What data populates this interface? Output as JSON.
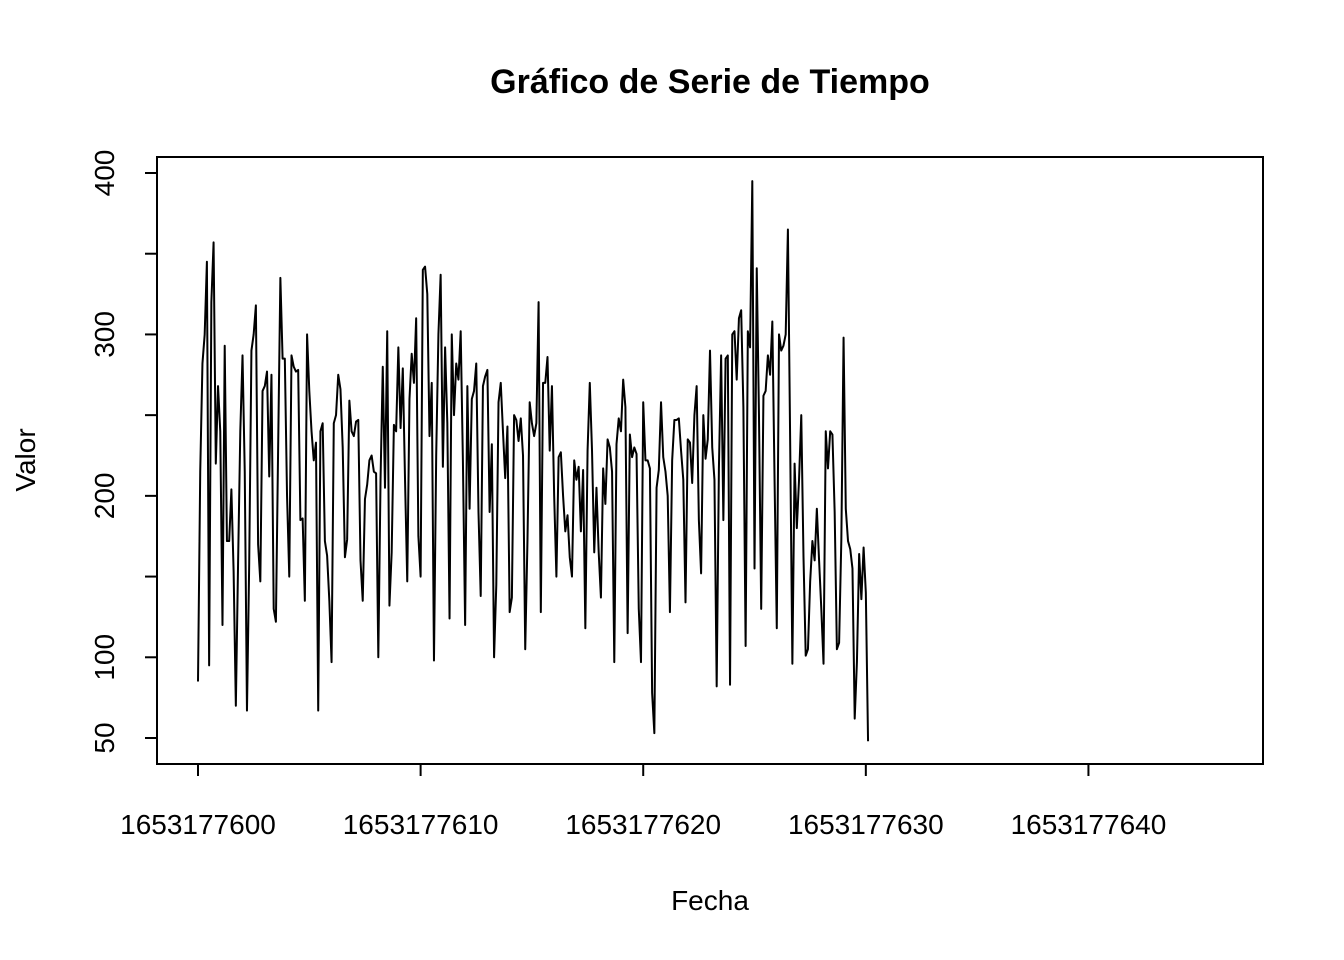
{
  "chart_data": {
    "type": "line",
    "title": "Gráfico de Serie de Tiempo",
    "xlabel": "Fecha",
    "ylabel": "Valor",
    "xlim": [
      1653177600,
      1653177646
    ],
    "ylim": [
      50,
      400
    ],
    "x_ticks": [
      1653177600,
      1653177610,
      1653177620,
      1653177630,
      1653177640
    ],
    "x_tick_labels": [
      "1653177600",
      "1653177610",
      "1653177620",
      "1653177630",
      "1653177640"
    ],
    "y_ticks": [
      50,
      100,
      150,
      200,
      250,
      300,
      350,
      400
    ],
    "y_tick_labels": [
      "50",
      "100",
      "",
      "200",
      "",
      "300",
      "",
      "400"
    ],
    "grid": false,
    "legend": "none",
    "x_start": 1653177600,
    "x_step": 0.1,
    "series": [
      {
        "color": "#000000",
        "values": [
          85,
          215,
          282,
          300,
          345,
          95,
          320,
          357,
          220,
          268,
          240,
          120,
          293,
          172,
          172,
          204,
          153,
          70,
          158,
          240,
          287,
          215,
          67,
          158,
          290,
          300,
          318,
          170,
          147,
          265,
          268,
          277,
          212,
          275,
          130,
          122,
          230,
          335,
          285,
          285,
          200,
          150,
          287,
          280,
          277,
          278,
          185,
          186,
          135,
          300,
          265,
          240,
          222,
          233,
          67,
          240,
          245,
          172,
          163,
          135,
          97,
          245,
          250,
          275,
          266,
          230,
          162,
          173,
          259,
          240,
          237,
          246,
          247,
          160,
          135,
          198,
          207,
          222,
          225,
          215,
          214,
          100,
          210,
          280,
          205,
          302,
          132,
          165,
          244,
          240,
          292,
          242,
          279,
          210,
          147,
          260,
          288,
          270,
          310,
          175,
          150,
          340,
          342,
          325,
          237,
          270,
          98,
          225,
          300,
          337,
          218,
          292,
          245,
          124,
          300,
          250,
          282,
          272,
          302,
          222,
          120,
          268,
          192,
          260,
          265,
          282,
          190,
          138,
          268,
          274,
          278,
          190,
          232,
          100,
          145,
          258,
          270,
          240,
          211,
          243,
          128,
          137,
          250,
          247,
          234,
          248,
          225,
          105,
          172,
          258,
          245,
          237,
          245,
          320,
          128,
          270,
          270,
          286,
          228,
          268,
          200,
          150,
          224,
          227,
          200,
          178,
          188,
          162,
          150,
          222,
          210,
          218,
          178,
          216,
          118,
          228,
          270,
          228,
          165,
          205,
          165,
          137,
          217,
          195,
          235,
          230,
          215,
          97,
          232,
          248,
          240,
          272,
          255,
          115,
          238,
          224,
          230,
          226,
          130,
          97,
          258,
          222,
          222,
          217,
          78,
          53,
          205,
          216,
          258,
          224,
          215,
          200,
          128,
          222,
          247,
          247,
          248,
          228,
          210,
          134,
          235,
          233,
          208,
          250,
          268,
          185,
          152,
          250,
          223,
          235,
          290,
          230,
          210,
          82,
          217,
          287,
          185,
          285,
          287,
          83,
          300,
          302,
          272,
          310,
          315,
          255,
          107,
          302,
          292,
          395,
          155,
          341,
          250,
          130,
          262,
          265,
          287,
          275,
          308,
          210,
          118,
          300,
          290,
          293,
          300,
          365,
          235,
          96,
          220,
          180,
          210,
          250,
          162,
          101,
          105,
          147,
          172,
          160,
          192,
          160,
          130,
          96,
          240,
          217,
          240,
          238,
          190,
          105,
          109,
          173,
          298,
          192,
          172,
          167,
          155,
          62,
          97,
          164,
          136,
          168,
          140,
          48
        ]
      }
    ]
  }
}
